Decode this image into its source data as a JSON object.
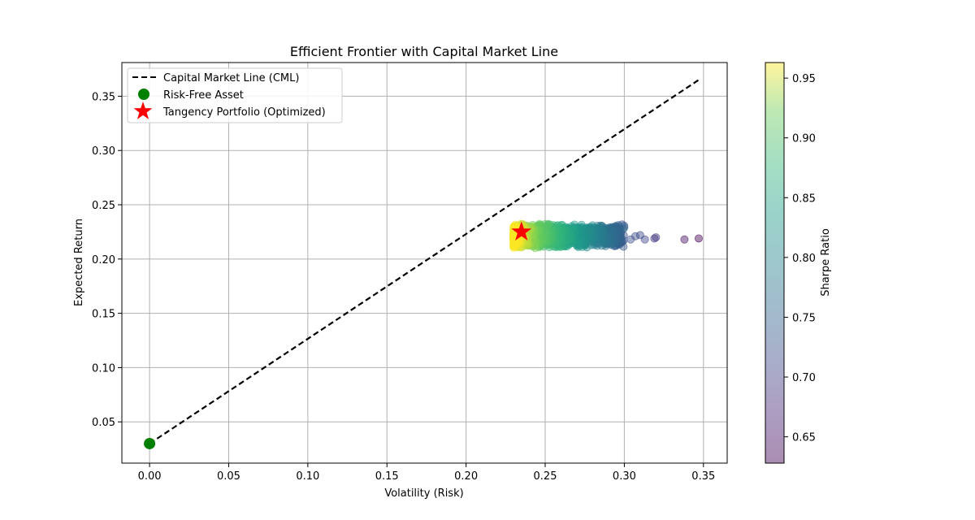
{
  "chart_data": {
    "type": "scatter",
    "title": "Efficient Frontier with Capital Market Line",
    "xlabel": "Volatility (Risk)",
    "ylabel": "Expected Return",
    "xlim": [
      -0.0175,
      0.365
    ],
    "ylim": [
      0.012,
      0.381
    ],
    "x_ticks": [
      "0.00",
      "0.05",
      "0.10",
      "0.15",
      "0.20",
      "0.25",
      "0.30",
      "0.35"
    ],
    "y_ticks": [
      "0.05",
      "0.10",
      "0.15",
      "0.20",
      "0.25",
      "0.30",
      "0.35"
    ],
    "grid": true,
    "legend_position": "top-left",
    "legend": [
      {
        "label": "Capital Market Line (CML)",
        "marker": "dashed-line",
        "color": "#000000"
      },
      {
        "label": "Risk-Free Asset",
        "marker": "circle",
        "color": "#008000"
      },
      {
        "label": "Tangency Portfolio (Optimized)",
        "marker": "star",
        "color": "#ff0000"
      }
    ],
    "colorbar": {
      "label": "Sharpe Ratio",
      "range": [
        0.628,
        0.963
      ],
      "ticks": [
        "0.65",
        "0.70",
        "0.75",
        "0.80",
        "0.85",
        "0.90",
        "0.95"
      ],
      "colormap": "viridis",
      "alpha": 0.45
    },
    "cml": {
      "x": [
        0.0,
        0.347
      ],
      "y": [
        0.03,
        0.365
      ],
      "color": "#000000",
      "style": "dashed"
    },
    "risk_free": {
      "x": 0.0,
      "y": 0.03,
      "color": "#008000"
    },
    "tangency": {
      "x": 0.235,
      "y": 0.225,
      "color": "#ff0000"
    },
    "portfolio_cloud": {
      "count": 1200,
      "x_range": [
        0.23,
        0.3
      ],
      "y_range": [
        0.21,
        0.233
      ],
      "sharpe_at_min_x": 0.963,
      "sharpe_at_max_x": 0.73
    },
    "outliers": [
      {
        "x": 0.304,
        "y": 0.218,
        "sharpe": 0.722
      },
      {
        "x": 0.307,
        "y": 0.221,
        "sharpe": 0.718
      },
      {
        "x": 0.31,
        "y": 0.222,
        "sharpe": 0.712
      },
      {
        "x": 0.313,
        "y": 0.218,
        "sharpe": 0.71
      },
      {
        "x": 0.319,
        "y": 0.219,
        "sharpe": 0.69
      },
      {
        "x": 0.32,
        "y": 0.22,
        "sharpe": 0.688
      },
      {
        "x": 0.338,
        "y": 0.218,
        "sharpe": 0.646
      },
      {
        "x": 0.347,
        "y": 0.219,
        "sharpe": 0.63
      },
      {
        "x": 0.3,
        "y": 0.229,
        "sharpe": 0.76
      },
      {
        "x": 0.298,
        "y": 0.215,
        "sharpe": 0.74
      }
    ]
  }
}
